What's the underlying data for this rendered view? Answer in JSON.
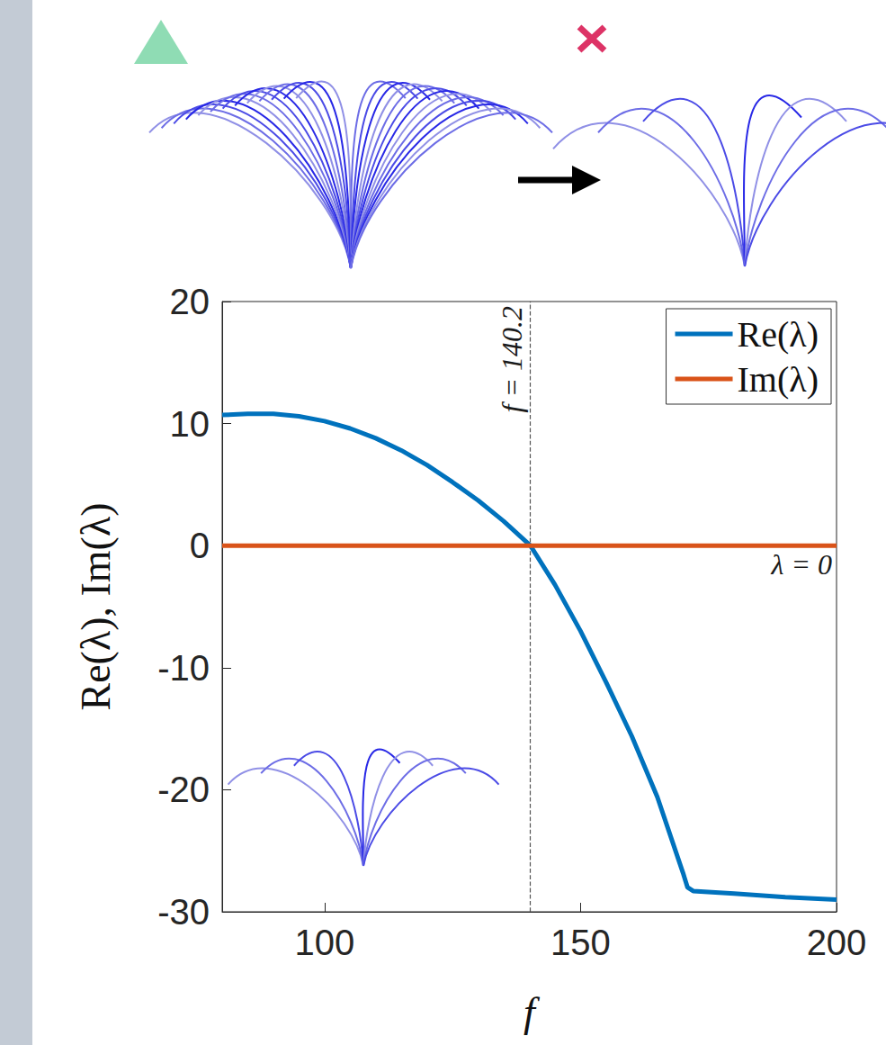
{
  "chart_data": {
    "type": "line",
    "x_label": "f",
    "y_label": "Re(λ), Im(λ)",
    "x": [
      80,
      85,
      90,
      95,
      100,
      105,
      110,
      115,
      120,
      125,
      130,
      135,
      140.2,
      145,
      150,
      155,
      160,
      165,
      170,
      170.9,
      172,
      180,
      190,
      200
    ],
    "series": [
      {
        "name": "Re(λ)",
        "color": "#0072bd",
        "line_style": "solid",
        "values": [
          10.7,
          10.8,
          10.8,
          10.6,
          10.2,
          9.6,
          8.8,
          7.8,
          6.6,
          5.2,
          3.7,
          2.0,
          0,
          -3.2,
          -7.0,
          -11.2,
          -15.6,
          -20.6,
          -26.8,
          -28.0,
          -28.3,
          -28.5,
          -28.8,
          -29.0
        ]
      },
      {
        "name": "Im(λ)",
        "color": "#d95319",
        "line_style": "solid",
        "values": [
          0,
          0,
          0,
          0,
          0,
          0,
          0,
          0,
          0,
          0,
          0,
          0,
          0,
          0,
          0,
          0,
          0,
          0,
          0,
          0,
          0,
          0,
          0,
          0
        ]
      }
    ],
    "xlim": [
      80,
      200
    ],
    "xticks": [
      100,
      150,
      200
    ],
    "ylim": [
      -30,
      20
    ],
    "yticks": [
      -30,
      -20,
      -10,
      0,
      10,
      20
    ],
    "grid": false,
    "legend": "top-right",
    "annotations": [
      {
        "text": "f = 140.2",
        "x": 140.2,
        "line_style": "dashed"
      },
      {
        "text": "λ = 0",
        "y": 0,
        "line_style": "dashed"
      }
    ]
  }
}
